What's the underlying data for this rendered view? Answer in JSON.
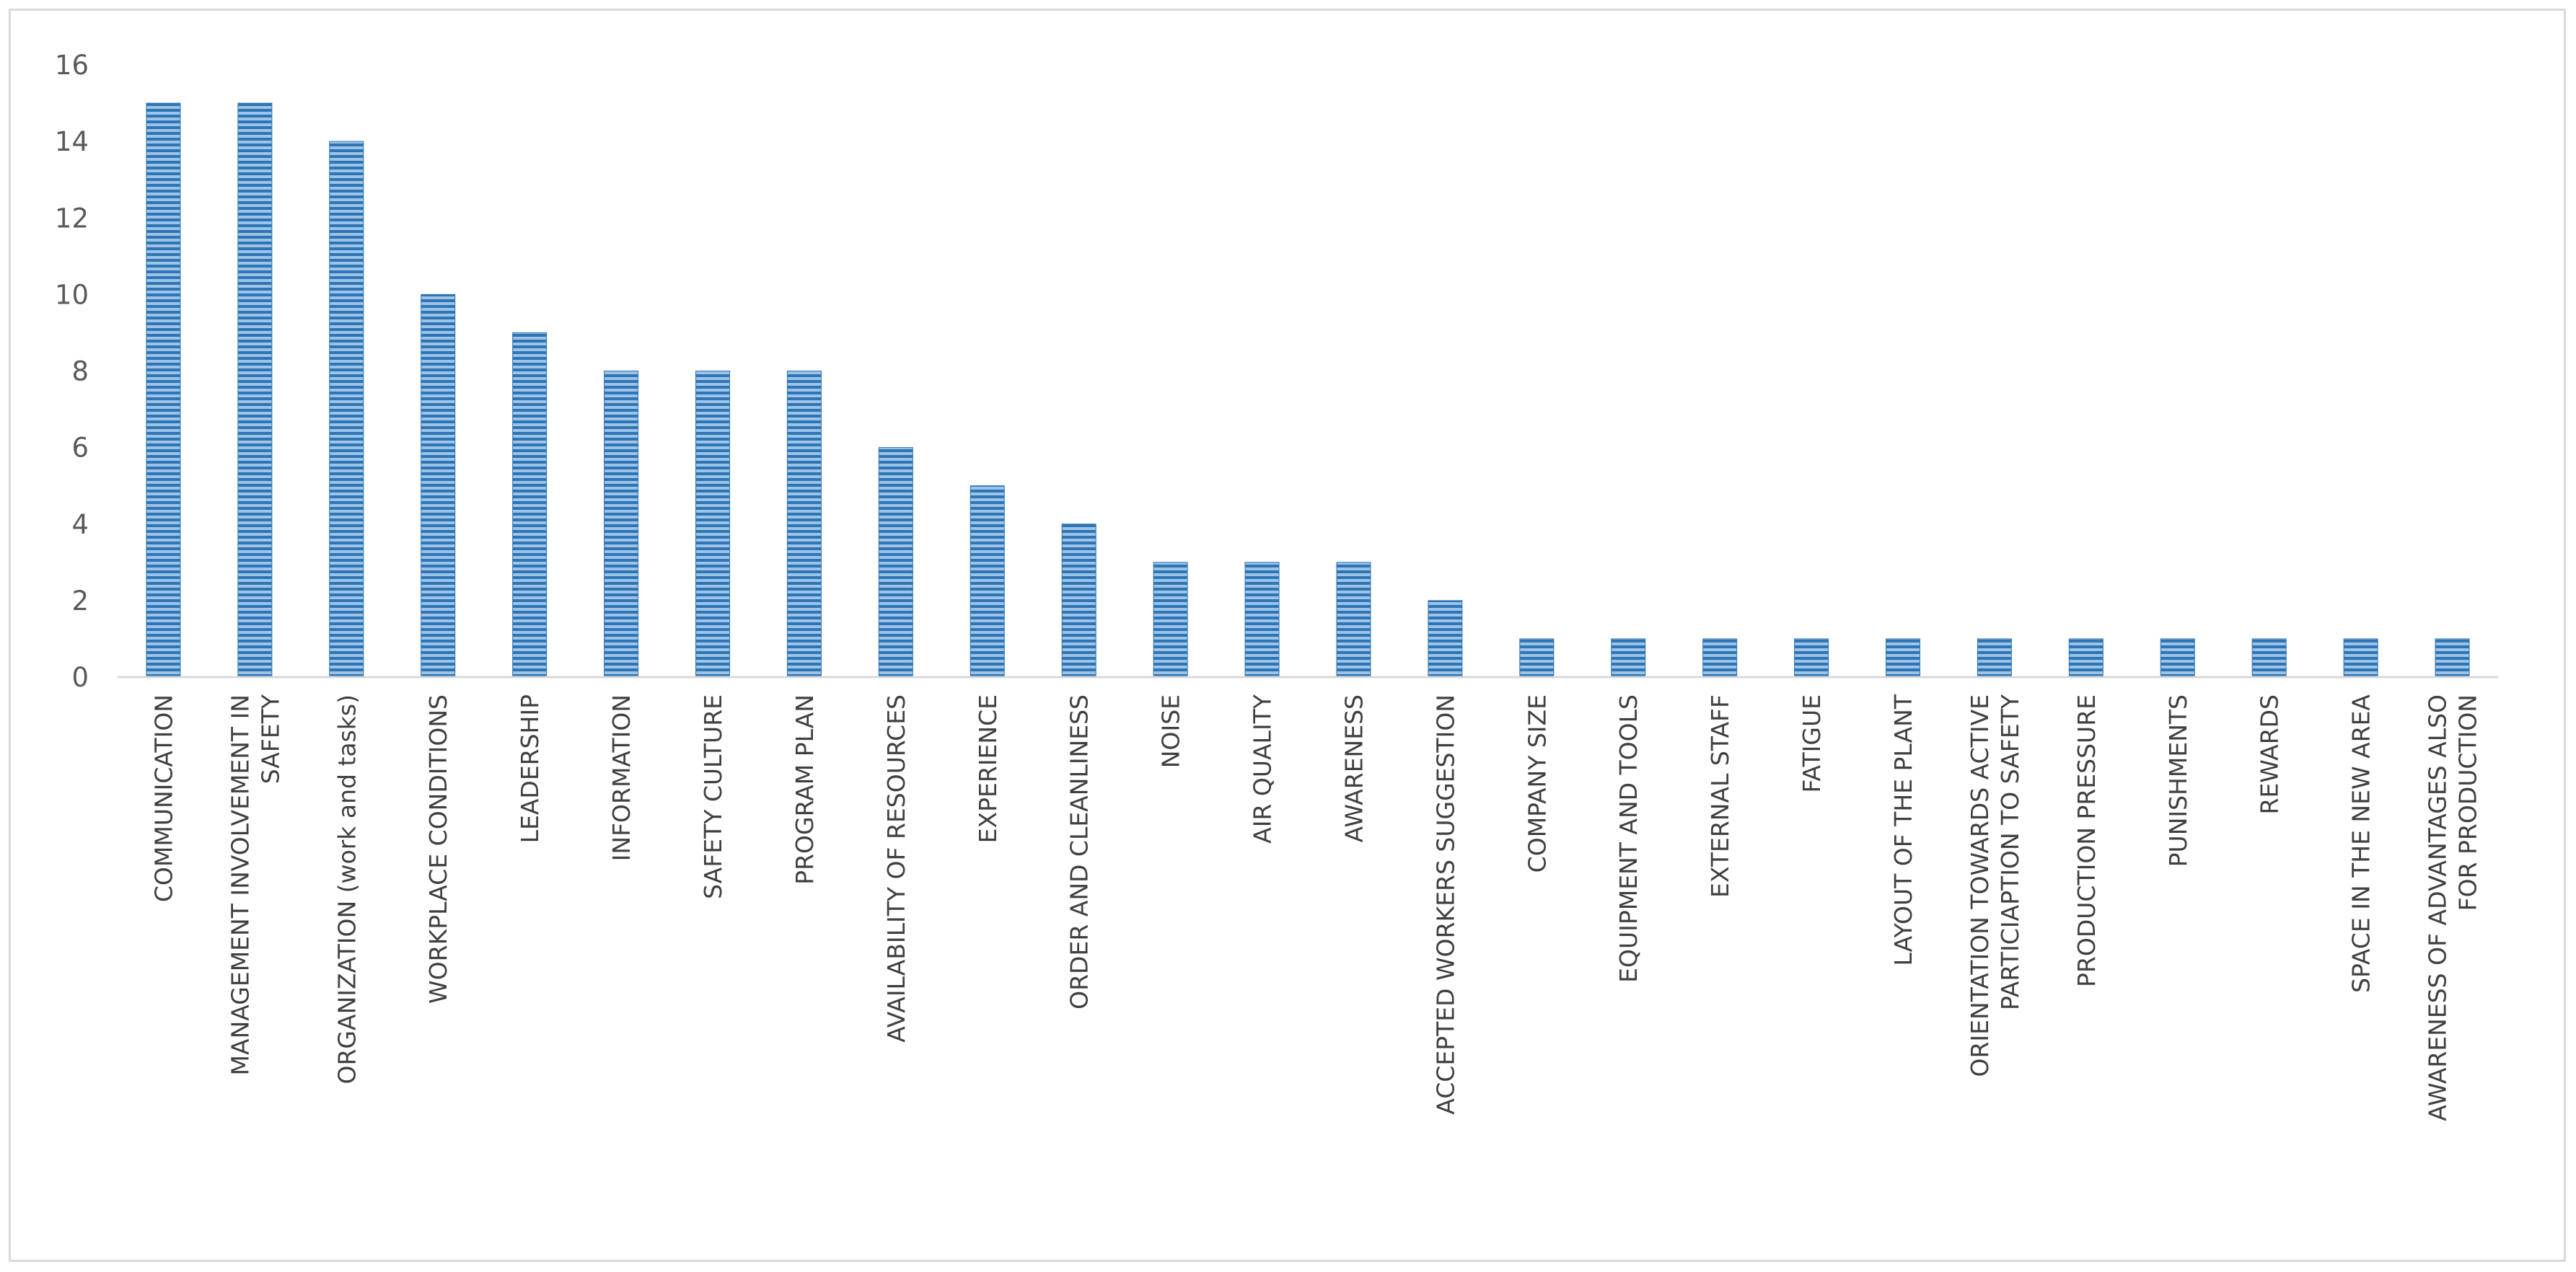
{
  "chart_data": {
    "type": "bar",
    "categories": [
      "COMMUNICATION",
      "MANAGEMENT INVOLVEMENT IN SAFETY",
      "ORGANIZATION (work and tasks)",
      "WORKPLACE CONDITIONS",
      "LEADERSHIP",
      "INFORMATION",
      "SAFETY CULTURE",
      "PROGRAM PLAN",
      "AVAILABILITY OF RESOURCES",
      "EXPERIENCE",
      "ORDER AND CLEANLINESS",
      "NOISE",
      "AIR QUALITY",
      "AWARENESS",
      "ACCEPTED WORKERS SUGGESTION",
      "COMPANY SIZE",
      "EQUIPMENT AND TOOLS",
      "EXTERNAL STAFF",
      "FATIGUE",
      "LAYOUT OF THE PLANT",
      "ORIENTATION TOWARDS ACTIVE PARTICIAPTION TO SAFETY",
      "PRODUCTION PRESSURE",
      "PUNISHMENTS",
      "REWARDS",
      "SPACE IN THE NEW AREA",
      "AWARENESS OF ADVANTAGES ALSO FOR PRODUCTION"
    ],
    "category_label_lines": [
      [
        "COMMUNICATION"
      ],
      [
        "MANAGEMENT INVOLVEMENT IN",
        "SAFETY"
      ],
      [
        "ORGANIZATION (work and tasks)"
      ],
      [
        "WORKPLACE CONDITIONS"
      ],
      [
        "LEADERSHIP"
      ],
      [
        "INFORMATION"
      ],
      [
        "SAFETY CULTURE"
      ],
      [
        "PROGRAM PLAN"
      ],
      [
        "AVAILABILITY OF RESOURCES"
      ],
      [
        "EXPERIENCE"
      ],
      [
        "ORDER AND CLEANLINESS"
      ],
      [
        "NOISE"
      ],
      [
        "AIR QUALITY"
      ],
      [
        "AWARENESS"
      ],
      [
        "ACCEPTED WORKERS SUGGESTION"
      ],
      [
        "COMPANY SIZE"
      ],
      [
        "EQUIPMENT AND TOOLS"
      ],
      [
        "EXTERNAL STAFF"
      ],
      [
        "FATIGUE"
      ],
      [
        "LAYOUT OF THE PLANT"
      ],
      [
        "ORIENTATION TOWARDS ACTIVE",
        "PARTICIAPTION TO SAFETY"
      ],
      [
        "PRODUCTION PRESSURE"
      ],
      [
        "PUNISHMENTS"
      ],
      [
        "REWARDS"
      ],
      [
        "SPACE IN THE NEW AREA"
      ],
      [
        "AWARENESS OF ADVANTAGES ALSO",
        "FOR PRODUCTION"
      ]
    ],
    "values": [
      15,
      15,
      14,
      10,
      9,
      8,
      8,
      8,
      6,
      5,
      4,
      3,
      3,
      3,
      2,
      1,
      1,
      1,
      1,
      1,
      1,
      1,
      1,
      1,
      1,
      1
    ],
    "title": "",
    "xlabel": "",
    "ylabel": "",
    "ylim": [
      0,
      16
    ],
    "yticks": [
      "0",
      "2",
      "4",
      "6",
      "8",
      "10",
      "12",
      "14",
      "16"
    ],
    "grid": false,
    "legend": "none",
    "bar_color": "#2e75b6",
    "bar_stripe_color": "#9dc3e6",
    "bar_fill_pattern": "horizontal-stripes"
  }
}
